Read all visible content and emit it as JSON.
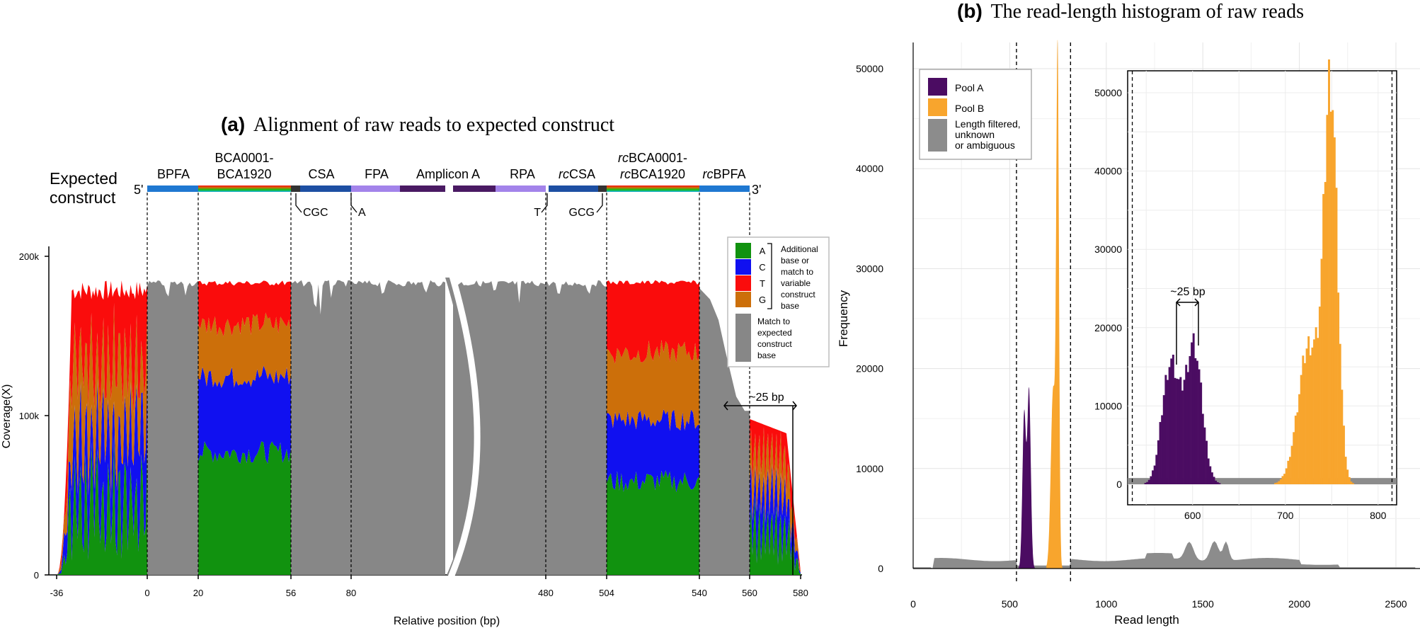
{
  "chart_data": [
    {
      "id": "a",
      "type": "area",
      "title_letter": "(a)",
      "title": "Alignment of raw reads to expected construct",
      "xlabel": "Relative position (bp)",
      "ylabel": "Coverage(X)",
      "ylim": [
        0,
        200000
      ],
      "yticks": [
        {
          "v": 0,
          "label": "0"
        },
        {
          "v": 100000,
          "label": "100k"
        },
        {
          "v": 200000,
          "label": "200k"
        }
      ],
      "xticks": [
        "-36",
        "0",
        "20",
        "56",
        "80",
        "480",
        "504",
        "540",
        "560",
        "580"
      ],
      "construct": {
        "label_line1": "Expected",
        "label_line2": "construct",
        "end5": "5'",
        "end3": "3'",
        "regions": [
          {
            "id": "bpfa",
            "prefix": "",
            "label": "BPFA",
            "color": "#1f78d1"
          },
          {
            "id": "bca",
            "prefix": "",
            "label": "BCA0001-",
            "prefix2": "",
            "label2": "BCA1920",
            "color": "rainbow"
          },
          {
            "id": "csa",
            "prefix": "",
            "label": "CSA",
            "color": "#1d4fa3"
          },
          {
            "id": "fpa",
            "prefix": "",
            "label": "FPA",
            "color": "#a383ea"
          },
          {
            "id": "amp",
            "prefix": "",
            "label": "Amplicon A",
            "color": "#4a1a63"
          },
          {
            "id": "rpa",
            "prefix": "",
            "label": "RPA",
            "color": "#a383ea"
          },
          {
            "id": "rccsa",
            "prefix": "rc",
            "label": "CSA",
            "color": "#1d4fa3"
          },
          {
            "id": "rcbca",
            "prefix": "rc",
            "label": "BCA0001-",
            "prefix2": "rc",
            "label2": "BCA1920",
            "color": "rainbow"
          },
          {
            "id": "rcbpfa",
            "prefix": "rc",
            "label": "BPFA",
            "color": "#1f78d1"
          }
        ],
        "callouts": [
          "CGC",
          "A",
          "T",
          "GCG"
        ]
      },
      "bracket_label": "~25 bp",
      "max_coverage": 185000,
      "step_coverage": 103000,
      "legend": {
        "entries": [
          {
            "letter": "A",
            "color": "#11920f"
          },
          {
            "letter": "C",
            "color": "#1010f0"
          },
          {
            "letter": "T",
            "color": "#fa0c0c"
          },
          {
            "letter": "G",
            "color": "#cc6f0a"
          }
        ],
        "variable_text": [
          "Additional",
          "base or",
          "match to",
          "variable",
          "construct",
          "base"
        ],
        "match_color": "#878787",
        "match_text": [
          "Match to",
          "expected",
          "construct",
          "base"
        ]
      }
    },
    {
      "id": "b",
      "type": "bar",
      "title_letter": "(b)",
      "title": "The read-length histogram of raw reads",
      "xlabel": "Read length",
      "ylabel": "Frequency",
      "xlim": [
        0,
        2600
      ],
      "ylim": [
        0,
        52000
      ],
      "xticks": [
        0,
        500,
        1000,
        1500,
        2000,
        2500
      ],
      "yticks": [
        0,
        10000,
        20000,
        30000,
        40000,
        50000
      ],
      "filter_bounds": [
        535,
        815
      ],
      "series": [
        {
          "name": "Pool A",
          "color": "#4b0c62",
          "peaks": [
            {
              "x": 575,
              "y": 15500,
              "sd": 9
            },
            {
              "x": 600,
              "y": 17800,
              "sd": 9
            }
          ]
        },
        {
          "name": "Pool B",
          "color": "#f8a52d",
          "peaks": [
            {
              "x": 748,
              "y": 50000,
              "sd": 7
            },
            {
              "x": 725,
              "y": 18000,
              "sd": 12
            }
          ]
        },
        {
          "name": "Length filtered, unknown or ambiguous",
          "color": "#8c8c8c",
          "hump_peaks": [
            {
              "x": 1550,
              "y": 1800
            },
            {
              "x": 1620,
              "y": 1900
            },
            {
              "x": 1440,
              "y": 1100
            }
          ]
        }
      ],
      "legend_labels": [
        "Pool A",
        "Pool B",
        "Length filtered,",
        "unknown",
        "or ambiguous"
      ],
      "inset": {
        "xlim": [
          530,
          820
        ],
        "ylim": [
          0,
          52000
        ],
        "xticks": [
          600,
          700,
          800
        ],
        "yticks": [
          0,
          10000,
          20000,
          30000,
          40000,
          50000
        ],
        "bracket_label": "~25 bp"
      }
    }
  ]
}
